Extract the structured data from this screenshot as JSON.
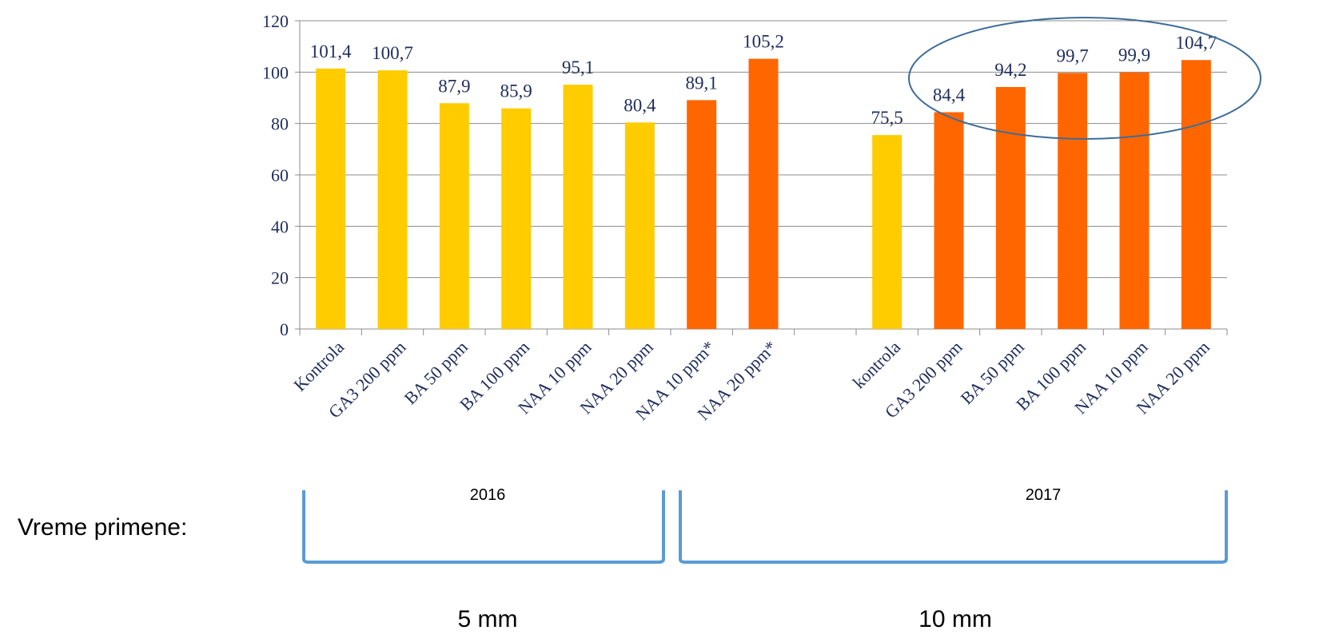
{
  "chart_data": {
    "type": "bar",
    "categories": [
      "Kontrola",
      "GA3 200 ppm",
      "BA 50 ppm",
      "BA 100 ppm",
      "NAA 10 ppm",
      "NAA 20 ppm",
      "NAA 10 ppm*",
      "NAA 20 ppm*",
      "",
      "kontrola",
      "GA3 200 ppm",
      "BA 50 ppm",
      "BA 100 ppm",
      "NAA 10 ppm",
      "NAA 20 ppm"
    ],
    "values": [
      101.4,
      100.7,
      87.9,
      85.9,
      95.1,
      80.4,
      89.1,
      105.2,
      null,
      75.5,
      84.4,
      94.2,
      99.7,
      99.9,
      104.7
    ],
    "value_labels": [
      "101,4",
      "100,7",
      "87,9",
      "85,9",
      "95,1",
      "80,4",
      "89,1",
      "105,2",
      "",
      "75,5",
      "84,4",
      "94,2",
      "99,7",
      "99,9",
      "104,7"
    ],
    "bar_colors": [
      "#ffcc00",
      "#ffcc00",
      "#ffcc00",
      "#ffcc00",
      "#ffcc00",
      "#ffcc00",
      "#ff6600",
      "#ff6600",
      "",
      "#ffcc00",
      "#ff6600",
      "#ff6600",
      "#ff6600",
      "#ff6600",
      "#ff6600"
    ],
    "yticks": [
      "0",
      "20",
      "40",
      "60",
      "80",
      "100",
      "120"
    ],
    "ylim": [
      0,
      120
    ],
    "grid": true,
    "legend": "none",
    "highlight": "ellipse around last five bars"
  },
  "groups": [
    {
      "year": "2016",
      "size": "5 mm"
    },
    {
      "year": "2017",
      "size": "10 mm"
    }
  ],
  "side_label": "Vreme primene:",
  "colors": {
    "text": "#1f2d5c",
    "bar_yellow": "#ffcc00",
    "bar_orange": "#ff6600",
    "bracket": "#5b9bd5",
    "ellipse": "#3d6d99"
  }
}
